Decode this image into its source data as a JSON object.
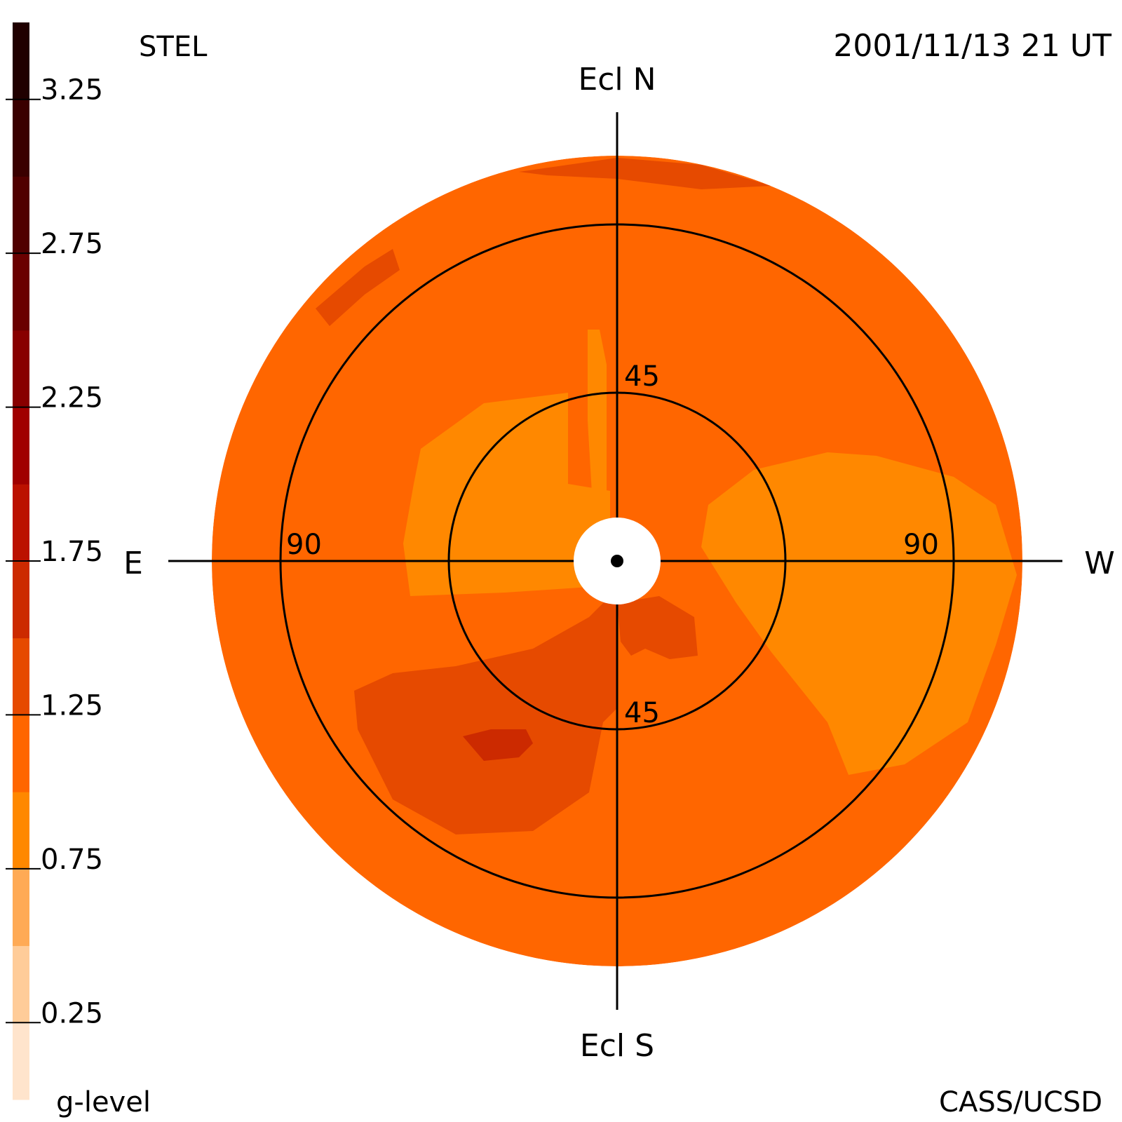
{
  "chart_data": {
    "type": "heatmap",
    "projection": "polar sky map (fisheye)",
    "header": {
      "instrument": "STEL",
      "timestamp": "2001/11/13 21 UT",
      "credit": "CASS/UCSD"
    },
    "colorbar": {
      "title": "g-level",
      "tick_labels": [
        "3.25",
        "2.75",
        "2.25",
        "1.75",
        "1.25",
        "0.75",
        "0.25"
      ],
      "tick_values": [
        3.25,
        2.75,
        2.25,
        1.75,
        1.25,
        0.75,
        0.25
      ],
      "range": [
        0,
        3.5
      ],
      "band_colors": [
        "#ffe4cc",
        "#ffcc99",
        "#ffaa55",
        "#ff8800",
        "#ff6600",
        "#e64a00",
        "#cc2a00",
        "#bb1100",
        "#a00000",
        "#880000",
        "#6a0000",
        "#500000",
        "#3a0000",
        "#200000"
      ]
    },
    "directions": {
      "north": "Ecl N",
      "south": "Ecl S",
      "east": "E",
      "west": "W"
    },
    "elongation_rings": [
      {
        "value": 45,
        "labels": [
          "45",
          "45"
        ]
      },
      {
        "value": 90,
        "labels": [
          "90",
          "90"
        ]
      }
    ],
    "outer_elongation_deg": 110,
    "background_g_level": 1.1,
    "regions": [
      {
        "name": "east-inner-enhancement",
        "g_level": 0.85
      },
      {
        "name": "west-enhancement",
        "g_level": 0.85
      },
      {
        "name": "north-spike",
        "g_level": 0.85
      },
      {
        "name": "south-east-enhancement",
        "g_level": 1.35
      },
      {
        "name": "south-east-peak",
        "g_level": 1.6
      },
      {
        "name": "center-south-lobe",
        "g_level": 1.35
      },
      {
        "name": "north-rim-patch",
        "g_level": 1.35
      },
      {
        "name": "north-east-rim-patch",
        "g_level": 1.35
      }
    ],
    "colors": {
      "background": "#e64a00",
      "light_orange": "#ff6600",
      "dark_orange": "#cc2a00",
      "darkest": "#a00000",
      "grid": "#000000"
    }
  }
}
